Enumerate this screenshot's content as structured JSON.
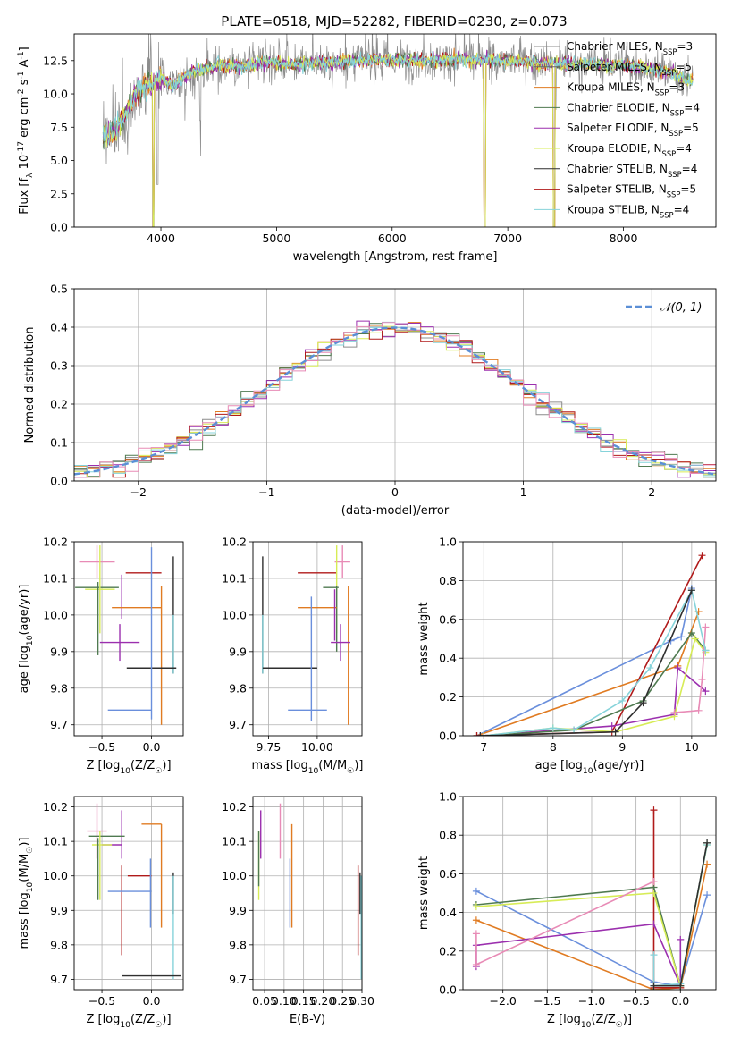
{
  "figure": {
    "title": "PLATE=0518, MJD=52282, FIBERID=0230, z=0.073"
  },
  "colors": {
    "Chabrier MILES": "#8c8c8c",
    "Salpeter MILES": "#666666",
    "Kroupa MILES": "#e07b22",
    "Chabrier ELODIE": "#4f7a50",
    "Salpeter ELODIE": "#9b2fae",
    "Kroupa ELODIE": "#d7ec56",
    "Chabrier STELIB": "#2f2f2f",
    "Salpeter STELIB": "#b01a1a",
    "Kroupa STELIB": "#86d3da",
    "pink": "#e88bb6",
    "blue": "#6a8fdc",
    "normal": "#5b8fd6"
  },
  "chart_data": [
    {
      "id": "spectrum",
      "type": "line",
      "title": "PLATE=0518, MJD=52282, FIBERID=0230, z=0.073",
      "xlabel": "wavelength [Angstrom, rest frame]",
      "ylabel": "Flux [f$_\\lambda$ 10$^{-17}$ erg cm$^{-2}$ s$^{-1}$ A$^{-1}$]",
      "xlim": [
        3250,
        8800
      ],
      "ylim": [
        0,
        14.5
      ],
      "xticks": [
        4000,
        5000,
        6000,
        7000,
        8000
      ],
      "yticks": [
        0.0,
        2.5,
        5.0,
        7.5,
        10.0,
        12.5
      ],
      "grid": false,
      "legend_position": "top-right",
      "series": [
        {
          "name": "Chabrier MILES, N_SSP=3",
          "label_main": "Chabrier MILES, N",
          "label_sub": "SSP",
          "label_tail": "=3",
          "color_key": "Chabrier MILES"
        },
        {
          "name": "Salpeter MILES, N_SSP=5",
          "label_main": "Salpeter MILES, N",
          "label_sub": "SSP",
          "label_tail": "=5",
          "color_key": "Salpeter MILES"
        },
        {
          "name": "Kroupa MILES, N_SSP=3",
          "label_main": "Kroupa MILES, N",
          "label_sub": "SSP",
          "label_tail": "=3",
          "color_key": "Kroupa MILES"
        },
        {
          "name": "Chabrier ELODIE, N_SSP=4",
          "label_main": "Chabrier ELODIE, N",
          "label_sub": "SSP",
          "label_tail": "=4",
          "color_key": "Chabrier ELODIE"
        },
        {
          "name": "Salpeter ELODIE, N_SSP=5",
          "label_main": "Salpeter ELODIE, N",
          "label_sub": "SSP",
          "label_tail": "=5",
          "color_key": "Salpeter ELODIE"
        },
        {
          "name": "Kroupa ELODIE, N_SSP=4",
          "label_main": "Kroupa ELODIE, N",
          "label_sub": "SSP",
          "label_tail": "=4",
          "color_key": "Kroupa ELODIE"
        },
        {
          "name": "Chabrier STELIB, N_SSP=4",
          "label_main": "Chabrier STELIB, N",
          "label_sub": "SSP",
          "label_tail": "=4",
          "color_key": "Chabrier STELIB"
        },
        {
          "name": "Salpeter STELIB, N_SSP=5",
          "label_main": "Salpeter STELIB, N",
          "label_sub": "SSP",
          "label_tail": "=5",
          "color_key": "Salpeter STELIB"
        },
        {
          "name": "Kroupa STELIB, N_SSP=4",
          "label_main": "Kroupa STELIB, N",
          "label_sub": "SSP",
          "label_tail": "=4",
          "color_key": "Kroupa STELIB"
        }
      ],
      "shape_points": {
        "x": [
          3500,
          3600,
          3700,
          3800,
          3900,
          4000,
          4100,
          4200,
          4300,
          4400,
          4500,
          4700,
          4900,
          5100,
          5300,
          5500,
          5700,
          6000,
          6300,
          6600,
          6900,
          7200,
          7500,
          7800,
          8100,
          8400,
          8600
        ],
        "y": [
          6.8,
          7.2,
          8.5,
          10.3,
          10.6,
          11.2,
          10.6,
          11.3,
          11.8,
          11.9,
          12.2,
          12.0,
          12.4,
          12.2,
          12.3,
          12.4,
          12.5,
          12.6,
          12.5,
          12.6,
          12.5,
          12.4,
          12.3,
          12.2,
          12.1,
          11.6,
          11.0
        ]
      },
      "dips": [
        {
          "x": 3934,
          "y": 0.0
        },
        {
          "x": 3969,
          "y": 3.2
        },
        {
          "x": 4340,
          "y": 8.0
        },
        {
          "x": 6800,
          "y": 0.0
        },
        {
          "x": 7400,
          "y": 0.0
        }
      ]
    },
    {
      "id": "residuals",
      "type": "line",
      "xlabel": "(data-model)/error",
      "ylabel": "Normed distribution",
      "xlim": [
        -2.5,
        2.5
      ],
      "ylim": [
        0,
        0.5
      ],
      "xticks": [
        -2,
        -1,
        0,
        1,
        2
      ],
      "yticks": [
        0.0,
        0.1,
        0.2,
        0.3,
        0.4,
        0.5
      ],
      "grid": true,
      "legend_position": "top-right",
      "legend_label": "𝒩(0, 1)",
      "bin_width": 0.1,
      "reference_curve": "gaussian mean 0 sigma 1"
    },
    {
      "id": "age-vs-Z",
      "type": "scatter",
      "xlabel": "Z [log$_{10}$(Z/Z$_\\odot$)]",
      "ylabel": "age  [log$_{10}$(age/yr)]",
      "xlim": [
        -0.78,
        0.32
      ],
      "ylim": [
        9.67,
        10.2
      ],
      "xticks": [
        -0.5,
        0.0
      ],
      "yticks": [
        9.7,
        9.8,
        9.9,
        10.0,
        10.1,
        10.2
      ],
      "grid": true,
      "points": [
        {
          "c": "pink",
          "x": -0.55,
          "y": 10.145,
          "ex": 0.18,
          "ey": 0.045
        },
        {
          "c": "Salpeter STELIB",
          "x": -0.08,
          "y": 10.115,
          "ex": 0.18,
          "ey": 0.0
        },
        {
          "c": "Chabrier ELODIE",
          "x": -0.55,
          "y": 10.075,
          "ex": 0.22,
          "ey": 0.0
        },
        {
          "c": "Kroupa ELODIE",
          "x": -0.52,
          "y": 10.07,
          "ex": 0.15,
          "ey": 0.12
        },
        {
          "c": "Chabrier ELODIE",
          "x": -0.54,
          "y": 9.99,
          "ex": 0.0,
          "ey": 0.1
        },
        {
          "c": "Salpeter ELODIE",
          "x": -0.3,
          "y": 10.05,
          "ex": 0.0,
          "ey": 0.06
        },
        {
          "c": "Kroupa MILES",
          "x": -0.15,
          "y": 10.02,
          "ex": 0.25,
          "ey": 0.0
        },
        {
          "c": "Kroupa MILES",
          "x": 0.1,
          "y": 9.89,
          "ex": 0.0,
          "ey": 0.19
        },
        {
          "c": "Salpeter ELODIE",
          "x": -0.32,
          "y": 9.925,
          "ex": 0.2,
          "ey": 0.05
        },
        {
          "c": "Chabrier STELIB",
          "x": 0.22,
          "y": 10.0,
          "ex": 0.0,
          "ey": 0.16
        },
        {
          "c": "Kroupa STELIB",
          "x": 0.22,
          "y": 9.92,
          "ex": 0.0,
          "ey": 0.08
        },
        {
          "c": "Chabrier STELIB",
          "x": 0.0,
          "y": 9.855,
          "ex": 0.25,
          "ey": 0.0
        },
        {
          "c": "blue",
          "x": 0.0,
          "y": 9.95,
          "ex": 0.0,
          "ey": 0.235
        },
        {
          "c": "blue",
          "x": -0.22,
          "y": 9.74,
          "ex": 0.22,
          "ey": 0.0
        }
      ]
    },
    {
      "id": "age-vs-mass",
      "type": "scatter",
      "xlabel": "mass [log$_{10}$(M/M$_\\odot$)]",
      "ylabel": "",
      "xlim": [
        9.67,
        10.23
      ],
      "ylim": [
        9.67,
        10.2
      ],
      "xticks": [
        9.75,
        10.0
      ],
      "xticklabels": [
        "9.75",
        "10.00"
      ],
      "yticks": [
        9.7,
        9.8,
        9.9,
        10.0,
        10.1,
        10.2
      ],
      "grid": true,
      "points": [
        {
          "c": "pink",
          "x": 10.13,
          "y": 10.145,
          "ex": 0.04,
          "ey": 0.045
        },
        {
          "c": "Salpeter STELIB",
          "x": 10.0,
          "y": 10.115,
          "ex": 0.1,
          "ey": 0.0
        },
        {
          "c": "Chabrier ELODIE",
          "x": 10.07,
          "y": 10.075,
          "ex": 0.04,
          "ey": 0.0
        },
        {
          "c": "Kroupa ELODIE",
          "x": 10.1,
          "y": 10.07,
          "ex": 0.0,
          "ey": 0.12
        },
        {
          "c": "Chabrier ELODIE",
          "x": 10.1,
          "y": 9.99,
          "ex": 0.0,
          "ey": 0.09
        },
        {
          "c": "Kroupa MILES",
          "x": 10.0,
          "y": 10.02,
          "ex": 0.1,
          "ey": 0.0
        },
        {
          "c": "Kroupa MILES",
          "x": 10.16,
          "y": 9.89,
          "ex": 0.0,
          "ey": 0.19
        },
        {
          "c": "Salpeter ELODIE",
          "x": 10.12,
          "y": 9.925,
          "ex": 0.05,
          "ey": 0.05
        },
        {
          "c": "Salpeter ELODIE",
          "x": 10.09,
          "y": 10.0,
          "ex": 0.0,
          "ey": 0.07
        },
        {
          "c": "Chabrier STELIB",
          "x": 9.72,
          "y": 10.0,
          "ex": 0.0,
          "ey": 0.16
        },
        {
          "c": "Kroupa STELIB",
          "x": 9.72,
          "y": 9.92,
          "ex": 0.0,
          "ey": 0.08
        },
        {
          "c": "Chabrier STELIB",
          "x": 9.86,
          "y": 9.855,
          "ex": 0.14,
          "ey": 0.0
        },
        {
          "c": "blue",
          "x": 9.97,
          "y": 9.88,
          "ex": 0.0,
          "ey": 0.17
        },
        {
          "c": "blue",
          "x": 9.95,
          "y": 9.74,
          "ex": 0.1,
          "ey": 0.0
        }
      ]
    },
    {
      "id": "weight-vs-age",
      "type": "line",
      "xlabel": "age  [log$_{10}$(age/yr)]",
      "ylabel": "mass weight",
      "xlim": [
        6.7,
        10.35
      ],
      "ylim": [
        0,
        1.0
      ],
      "xticks": [
        7,
        8,
        9,
        10
      ],
      "yticks": [
        0.0,
        0.2,
        0.4,
        0.6,
        0.8,
        1.0
      ],
      "grid": true,
      "series": [
        {
          "c": "blue",
          "x": [
            6.9,
            9.7,
            9.85,
            10.0
          ],
          "y": [
            0.0,
            0.49,
            0.51,
            0.76
          ]
        },
        {
          "c": "Kroupa MILES",
          "x": [
            6.9,
            9.8,
            10.1
          ],
          "y": [
            0.0,
            0.36,
            0.64
          ]
        },
        {
          "c": "Salpeter STELIB",
          "x": [
            6.9,
            8.85,
            10.15
          ],
          "y": [
            0.0,
            0.02,
            0.93
          ]
        },
        {
          "c": "Salpeter ELODIE",
          "x": [
            6.95,
            8.85,
            9.75,
            9.8,
            10.2
          ],
          "y": [
            0.0,
            0.05,
            0.11,
            0.35,
            0.23
          ]
        },
        {
          "c": "Chabrier ELODIE",
          "x": [
            7.0,
            8.3,
            9.3,
            10.0,
            10.2
          ],
          "y": [
            0.0,
            0.03,
            0.18,
            0.53,
            0.44
          ]
        },
        {
          "c": "Kroupa ELODIE",
          "x": [
            7.0,
            8.0,
            8.9,
            9.75,
            10.05,
            10.2
          ],
          "y": [
            0.0,
            0.04,
            0.02,
            0.1,
            0.5,
            0.43
          ]
        },
        {
          "c": "pink",
          "x": [
            9.75,
            10.1,
            10.15,
            10.2
          ],
          "y": [
            0.12,
            0.13,
            0.29,
            0.56
          ]
        },
        {
          "c": "Kroupa STELIB",
          "x": [
            7.0,
            8.0,
            8.3,
            9.0,
            9.4,
            10.0,
            10.2
          ],
          "y": [
            0.0,
            0.04,
            0.03,
            0.18,
            0.35,
            0.75,
            0.44
          ]
        },
        {
          "c": "Chabrier STELIB",
          "x": [
            6.95,
            8.9,
            9.3,
            10.0
          ],
          "y": [
            0.0,
            0.02,
            0.17,
            0.75
          ]
        }
      ]
    },
    {
      "id": "mass-vs-Z",
      "type": "scatter",
      "xlabel": "Z [log$_{10}$(Z/Z$_\\odot$)]",
      "ylabel": "mass [log$_{10}$(M/M$_\\odot$)]",
      "xlim": [
        -0.78,
        0.32
      ],
      "ylim": [
        9.67,
        10.23
      ],
      "xticks": [
        -0.5,
        0.0
      ],
      "yticks": [
        9.7,
        9.8,
        9.9,
        10.0,
        10.1,
        10.2
      ],
      "grid": true,
      "points": [
        {
          "c": "pink",
          "x": -0.55,
          "y": 10.13,
          "ex": 0.1,
          "ey": 0.08
        },
        {
          "c": "Salpeter ELODIE",
          "x": -0.3,
          "y": 10.12,
          "ex": 0.0,
          "ey": 0.07
        },
        {
          "c": "Chabrier ELODIE",
          "x": -0.45,
          "y": 10.115,
          "ex": 0.18,
          "ey": 0.0
        },
        {
          "c": "Kroupa MILES",
          "x": 0.0,
          "y": 10.15,
          "ex": 0.1,
          "ey": 0.0
        },
        {
          "c": "Kroupa MILES",
          "x": 0.1,
          "y": 10.0,
          "ex": 0.0,
          "ey": 0.15
        },
        {
          "c": "Salpeter ELODIE",
          "x": -0.4,
          "y": 10.09,
          "ex": 0.1,
          "ey": 0.0
        },
        {
          "c": "Kroupa ELODIE",
          "x": -0.5,
          "y": 10.09,
          "ex": 0.1,
          "ey": 0.0
        },
        {
          "c": "Chabrier ELODIE",
          "x": -0.54,
          "y": 10.02,
          "ex": 0.0,
          "ey": 0.09
        },
        {
          "c": "Kroupa ELODIE",
          "x": -0.52,
          "y": 10.03,
          "ex": 0.0,
          "ey": 0.1
        },
        {
          "c": "Salpeter STELIB",
          "x": -0.12,
          "y": 10.0,
          "ex": 0.12,
          "ey": 0.0
        },
        {
          "c": "Salpeter STELIB",
          "x": -0.3,
          "y": 9.9,
          "ex": 0.0,
          "ey": 0.13
        },
        {
          "c": "Chabrier STELIB",
          "x": 0.22,
          "y": 9.95,
          "ex": 0.0,
          "ey": 0.06
        },
        {
          "c": "blue",
          "x": -0.22,
          "y": 9.955,
          "ex": 0.22,
          "ey": 0.0
        },
        {
          "c": "blue",
          "x": -0.01,
          "y": 9.95,
          "ex": 0.0,
          "ey": 0.1
        },
        {
          "c": "Kroupa STELIB",
          "x": 0.22,
          "y": 9.85,
          "ex": 0.0,
          "ey": 0.15
        },
        {
          "c": "Chabrier STELIB",
          "x": 0.0,
          "y": 9.71,
          "ex": 0.3,
          "ey": 0.0
        }
      ]
    },
    {
      "id": "mass-vs-EBV",
      "type": "scatter",
      "xlabel": "E(B-V)",
      "ylabel": "",
      "xlim": [
        0.02,
        0.3
      ],
      "ylim": [
        9.67,
        10.23
      ],
      "xticks": [
        0.05,
        0.1,
        0.15,
        0.2,
        0.25,
        0.3
      ],
      "xticklabels": [
        "0.05",
        "0.10",
        "0.15",
        "0.20",
        "0.25",
        "0.30"
      ],
      "yticks": [
        9.7,
        9.8,
        9.9,
        10.0,
        10.1,
        10.2
      ],
      "grid": true,
      "points": [
        {
          "c": "Salpeter ELODIE",
          "x": 0.04,
          "y": 10.12,
          "ex": 0.0,
          "ey": 0.07
        },
        {
          "c": "Kroupa ELODIE",
          "x": 0.035,
          "y": 10.03,
          "ex": 0.0,
          "ey": 0.1
        },
        {
          "c": "Chabrier ELODIE",
          "x": 0.035,
          "y": 10.05,
          "ex": 0.0,
          "ey": 0.08
        },
        {
          "c": "pink",
          "x": 0.09,
          "y": 10.13,
          "ex": 0.0,
          "ey": 0.08
        },
        {
          "c": "Kroupa MILES",
          "x": 0.12,
          "y": 10.0,
          "ex": 0.0,
          "ey": 0.15
        },
        {
          "c": "blue",
          "x": 0.115,
          "y": 9.95,
          "ex": 0.0,
          "ey": 0.1
        },
        {
          "c": "Salpeter STELIB",
          "x": 0.29,
          "y": 9.9,
          "ex": 0.0,
          "ey": 0.13
        },
        {
          "c": "Chabrier STELIB",
          "x": 0.295,
          "y": 9.95,
          "ex": 0.0,
          "ey": 0.06
        },
        {
          "c": "Kroupa STELIB",
          "x": 0.298,
          "y": 9.85,
          "ex": 0.0,
          "ey": 0.15
        }
      ]
    },
    {
      "id": "weight-vs-Z",
      "type": "line",
      "xlabel": "Z [log$_{10}$(Z/Z$_\\odot$)]",
      "ylabel": "mass weight",
      "xlim": [
        -2.45,
        0.4
      ],
      "ylim": [
        0,
        1.0
      ],
      "xticks": [
        -2.0,
        -1.5,
        -1.0,
        -0.5,
        0.0
      ],
      "yticks": [
        0.0,
        0.2,
        0.4,
        0.6,
        0.8,
        1.0
      ],
      "grid": true,
      "series": [
        {
          "c": "blue",
          "x": [
            -2.3,
            -0.3,
            0.0,
            0.3
          ],
          "y": [
            0.51,
            0.04,
            0.02,
            0.49
          ]
        },
        {
          "c": "Kroupa MILES",
          "x": [
            -2.3,
            -0.3,
            0.0,
            0.3
          ],
          "y": [
            0.36,
            0.0,
            0.01,
            0.65
          ]
        },
        {
          "c": "Salpeter STELIB",
          "x": [
            -0.3,
            -0.3,
            0.0
          ],
          "y": [
            0.93,
            0.01,
            0.01
          ]
        },
        {
          "c": "Salpeter ELODIE",
          "x": [
            -2.3,
            -2.3,
            -0.3,
            0.0,
            0.0
          ],
          "y": [
            0.12,
            0.23,
            0.34,
            0.02,
            0.26
          ]
        },
        {
          "c": "Chabrier ELODIE",
          "x": [
            -2.3,
            -0.3,
            0.0,
            0.3
          ],
          "y": [
            0.44,
            0.53,
            0.02,
            0.76
          ]
        },
        {
          "c": "Kroupa ELODIE",
          "x": [
            -2.3,
            -0.3,
            0.0,
            0.3
          ],
          "y": [
            0.43,
            0.5,
            0.02,
            0.75
          ]
        },
        {
          "c": "pink",
          "x": [
            -2.3,
            -2.3,
            -0.3
          ],
          "y": [
            0.29,
            0.13,
            0.56
          ]
        },
        {
          "c": "Kroupa STELIB",
          "x": [
            -0.3,
            -0.3,
            0.0,
            0.3
          ],
          "y": [
            0.18,
            0.02,
            0.03,
            0.75
          ]
        },
        {
          "c": "Chabrier STELIB",
          "x": [
            -0.3,
            0.0,
            0.3
          ],
          "y": [
            0.02,
            0.02,
            0.76
          ]
        }
      ]
    }
  ]
}
